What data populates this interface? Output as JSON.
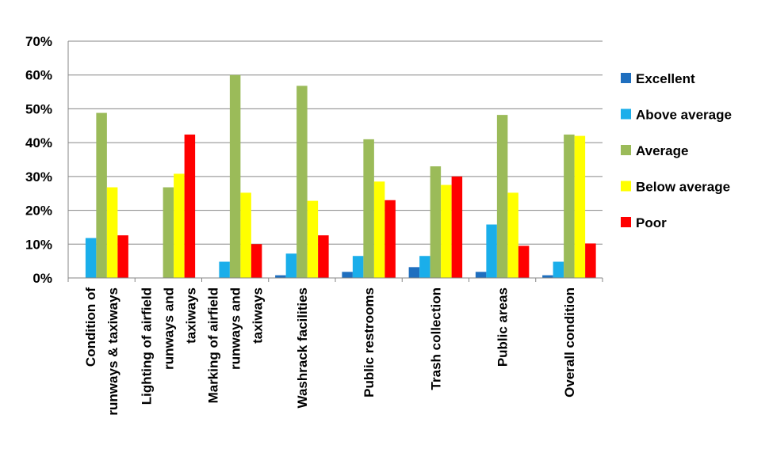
{
  "chart_data": {
    "type": "bar",
    "title": "",
    "xlabel": "",
    "ylabel": "",
    "ylim": [
      0,
      70
    ],
    "yticks": [
      "0%",
      "10%",
      "20%",
      "30%",
      "40%",
      "50%",
      "60%",
      "70%"
    ],
    "grid": true,
    "legend_position": "right",
    "categories": [
      [
        "Condition of",
        "runways & taxiways"
      ],
      [
        "Lighting of airfield",
        "runways and",
        "taxiways"
      ],
      [
        "Marking of airfield",
        "runways and",
        "taxiways"
      ],
      [
        "Washrack facilities"
      ],
      [
        "Public restrooms"
      ],
      [
        "Trash collection"
      ],
      [
        "Public areas"
      ],
      [
        "Overall condition"
      ]
    ],
    "series": [
      {
        "name": "Excellent",
        "color": "#1f6fbf",
        "values": [
          0,
          0,
          0,
          0.8,
          1.8,
          3.2,
          1.8,
          0.8
        ]
      },
      {
        "name": "Above average",
        "color": "#1aaeea",
        "values": [
          11.8,
          0,
          4.8,
          7.2,
          6.5,
          6.5,
          15.8,
          4.8
        ]
      },
      {
        "name": "Average",
        "color": "#9bbb59",
        "values": [
          48.8,
          26.8,
          60,
          56.8,
          41,
          33,
          48.2,
          42.4
        ]
      },
      {
        "name": "Below average",
        "color": "#ffff00",
        "values": [
          26.8,
          30.8,
          25.2,
          22.8,
          28.5,
          27.5,
          25.2,
          42
        ]
      },
      {
        "name": "Poor",
        "color": "#ff0000",
        "values": [
          12.6,
          42.4,
          10,
          12.6,
          23,
          30,
          9.5,
          10.2
        ]
      }
    ]
  }
}
